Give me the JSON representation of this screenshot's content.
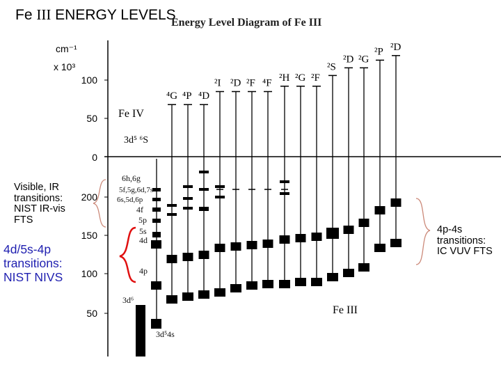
{
  "slide": {
    "title_prefix": "Fe ",
    "title_roman": "III",
    "title_suffix": " ENERGY LEVELS"
  },
  "diagram": {
    "title": "Energy Level Diagram of Fe III",
    "y_unit": "cm⁻¹",
    "y_scale": "x 10³",
    "upper_ticks": [
      100,
      50,
      0
    ],
    "lower_ticks": [
      200,
      150,
      100,
      50
    ],
    "upper_region_label": "Fe IV",
    "upper_ground_label": "3d⁵ ⁶S",
    "lower_region_label": "Fe III",
    "columns": [
      {
        "term": "⁴G",
        "top": 68
      },
      {
        "term": "⁴P",
        "top": 68
      },
      {
        "term": "⁴D",
        "top": 68
      },
      {
        "term": "²I",
        "top": 85
      },
      {
        "term": "²D",
        "top": 85
      },
      {
        "term": "²F",
        "top": 85
      },
      {
        "term": "⁴F",
        "top": 85
      },
      {
        "term": "²H",
        "top": 92
      },
      {
        "term": "²G",
        "top": 92
      },
      {
        "term": "²F",
        "top": 92
      },
      {
        "term": "²S",
        "top": 106
      },
      {
        "term": "²D",
        "top": 116
      },
      {
        "term": "²G",
        "top": 116
      },
      {
        "term": "²P",
        "top": 126
      },
      {
        "term": "²D",
        "top": 132
      }
    ],
    "config_labels": {
      "n6": "6h,6g",
      "n5": "5f,5g,6d,7s",
      "n6s": "6s,5d,6p",
      "f4": "4f",
      "p5": "5p",
      "s5": "5s",
      "d4": "4d",
      "p4": "4p",
      "d6": "3d⁶",
      "ground": "3d⁵4s"
    }
  },
  "annotations": {
    "visible_ir": [
      "Visible, IR",
      "transitions:",
      "NIST IR-vis",
      "FTS"
    ],
    "nivs": [
      "4d/5s-4p",
      "transitions:",
      "NIST NIVS"
    ],
    "vuv": [
      "4p-4s",
      "transitions:",
      "IC VUV FTS"
    ]
  },
  "colors": {
    "brace_red": "#e01010",
    "nivs_text": "#1f1fb0",
    "brace_gray": "#cc8a7a"
  }
}
